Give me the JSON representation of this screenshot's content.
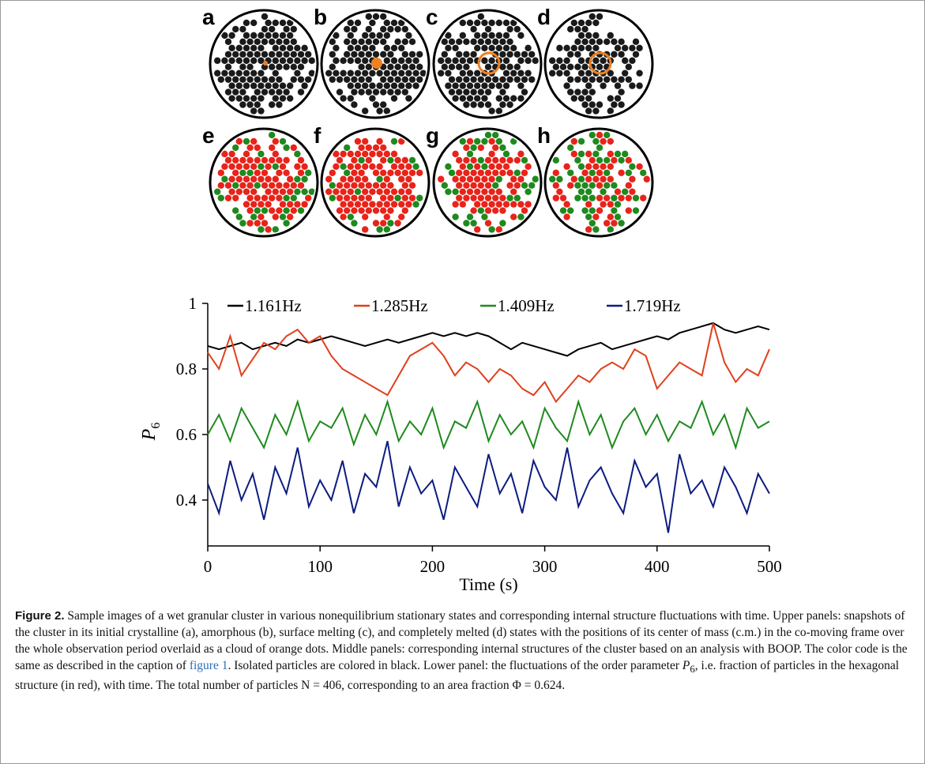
{
  "panels": [
    {
      "label": "a"
    },
    {
      "label": "b"
    },
    {
      "label": "c"
    },
    {
      "label": "d"
    },
    {
      "label": "e"
    },
    {
      "label": "f"
    },
    {
      "label": "g"
    },
    {
      "label": "h"
    }
  ],
  "chart_data": {
    "type": "line",
    "xlabel": "Time (s)",
    "ylabel": "P",
    "ylabel_subscript": "6",
    "xlim": [
      0,
      500
    ],
    "xticks": [
      0,
      100,
      200,
      300,
      400,
      500
    ],
    "ylim": [
      0.26,
      1.0
    ],
    "yticks": [
      0.4,
      0.6,
      0.8,
      1
    ],
    "x": [
      0,
      10,
      20,
      30,
      40,
      50,
      60,
      70,
      80,
      90,
      100,
      110,
      120,
      130,
      140,
      150,
      160,
      170,
      180,
      190,
      200,
      210,
      220,
      230,
      240,
      250,
      260,
      270,
      280,
      290,
      300,
      310,
      320,
      330,
      340,
      350,
      360,
      370,
      380,
      390,
      400,
      410,
      420,
      430,
      440,
      450,
      460,
      470,
      480,
      490,
      500
    ],
    "series": [
      {
        "name": "1.161Hz",
        "color": "#000000",
        "values": [
          0.87,
          0.86,
          0.87,
          0.88,
          0.86,
          0.87,
          0.88,
          0.87,
          0.89,
          0.88,
          0.89,
          0.9,
          0.89,
          0.88,
          0.87,
          0.88,
          0.89,
          0.88,
          0.89,
          0.9,
          0.91,
          0.9,
          0.91,
          0.9,
          0.91,
          0.9,
          0.88,
          0.86,
          0.88,
          0.87,
          0.86,
          0.85,
          0.84,
          0.86,
          0.87,
          0.88,
          0.86,
          0.87,
          0.88,
          0.89,
          0.9,
          0.89,
          0.91,
          0.92,
          0.93,
          0.94,
          0.92,
          0.91,
          0.92,
          0.93,
          0.92
        ]
      },
      {
        "name": "1.285Hz",
        "color": "#e0401c",
        "values": [
          0.85,
          0.8,
          0.9,
          0.78,
          0.83,
          0.88,
          0.86,
          0.9,
          0.92,
          0.88,
          0.9,
          0.84,
          0.8,
          0.78,
          0.76,
          0.74,
          0.72,
          0.78,
          0.84,
          0.86,
          0.88,
          0.84,
          0.78,
          0.82,
          0.8,
          0.76,
          0.8,
          0.78,
          0.74,
          0.72,
          0.76,
          0.7,
          0.74,
          0.78,
          0.76,
          0.8,
          0.82,
          0.8,
          0.86,
          0.84,
          0.74,
          0.78,
          0.82,
          0.8,
          0.78,
          0.94,
          0.82,
          0.76,
          0.8,
          0.78,
          0.86
        ]
      },
      {
        "name": "1.409Hz",
        "color": "#1e8a1e",
        "values": [
          0.6,
          0.66,
          0.58,
          0.68,
          0.62,
          0.56,
          0.66,
          0.6,
          0.7,
          0.58,
          0.64,
          0.62,
          0.68,
          0.57,
          0.66,
          0.6,
          0.7,
          0.58,
          0.64,
          0.6,
          0.68,
          0.56,
          0.64,
          0.62,
          0.7,
          0.58,
          0.66,
          0.6,
          0.64,
          0.56,
          0.68,
          0.62,
          0.58,
          0.7,
          0.6,
          0.66,
          0.56,
          0.64,
          0.68,
          0.6,
          0.66,
          0.58,
          0.64,
          0.62,
          0.7,
          0.6,
          0.66,
          0.56,
          0.68,
          0.62,
          0.64
        ]
      },
      {
        "name": "1.719Hz",
        "color": "#0c1c80",
        "values": [
          0.45,
          0.36,
          0.52,
          0.4,
          0.48,
          0.34,
          0.5,
          0.42,
          0.56,
          0.38,
          0.46,
          0.4,
          0.52,
          0.36,
          0.48,
          0.44,
          0.58,
          0.38,
          0.5,
          0.42,
          0.46,
          0.34,
          0.5,
          0.44,
          0.38,
          0.54,
          0.42,
          0.48,
          0.36,
          0.52,
          0.44,
          0.4,
          0.56,
          0.38,
          0.46,
          0.5,
          0.42,
          0.36,
          0.52,
          0.44,
          0.48,
          0.3,
          0.54,
          0.42,
          0.46,
          0.38,
          0.5,
          0.44,
          0.36,
          0.48,
          0.42
        ]
      }
    ]
  },
  "caption": {
    "label": "Figure 2.",
    "text_before_link": "Sample images of a wet granular cluster in various nonequilibrium stationary states and corresponding internal structure fluctuations with time. Upper panels: snapshots of the cluster in its initial crystalline (a), amorphous (b), surface melting (c), and completely melted (d) states with the positions of its center of mass (c.m.) in the co-moving frame over the whole observation period overlaid as a cloud of orange dots. Middle panels: corresponding internal structures of the cluster based on an analysis with BOOP. The color code is the same as described in the caption of ",
    "link": "figure 1",
    "text_after_link": ". Isolated particles are colored in black. Lower panel: the fluctuations of the order parameter ",
    "symbol": "P",
    "subscript": "6",
    "text_end": ", i.e. fraction of particles in the hexagonal structure (in red), with time. The total number of particles N = 406, corresponding to an area fraction Φ = 0.624."
  }
}
